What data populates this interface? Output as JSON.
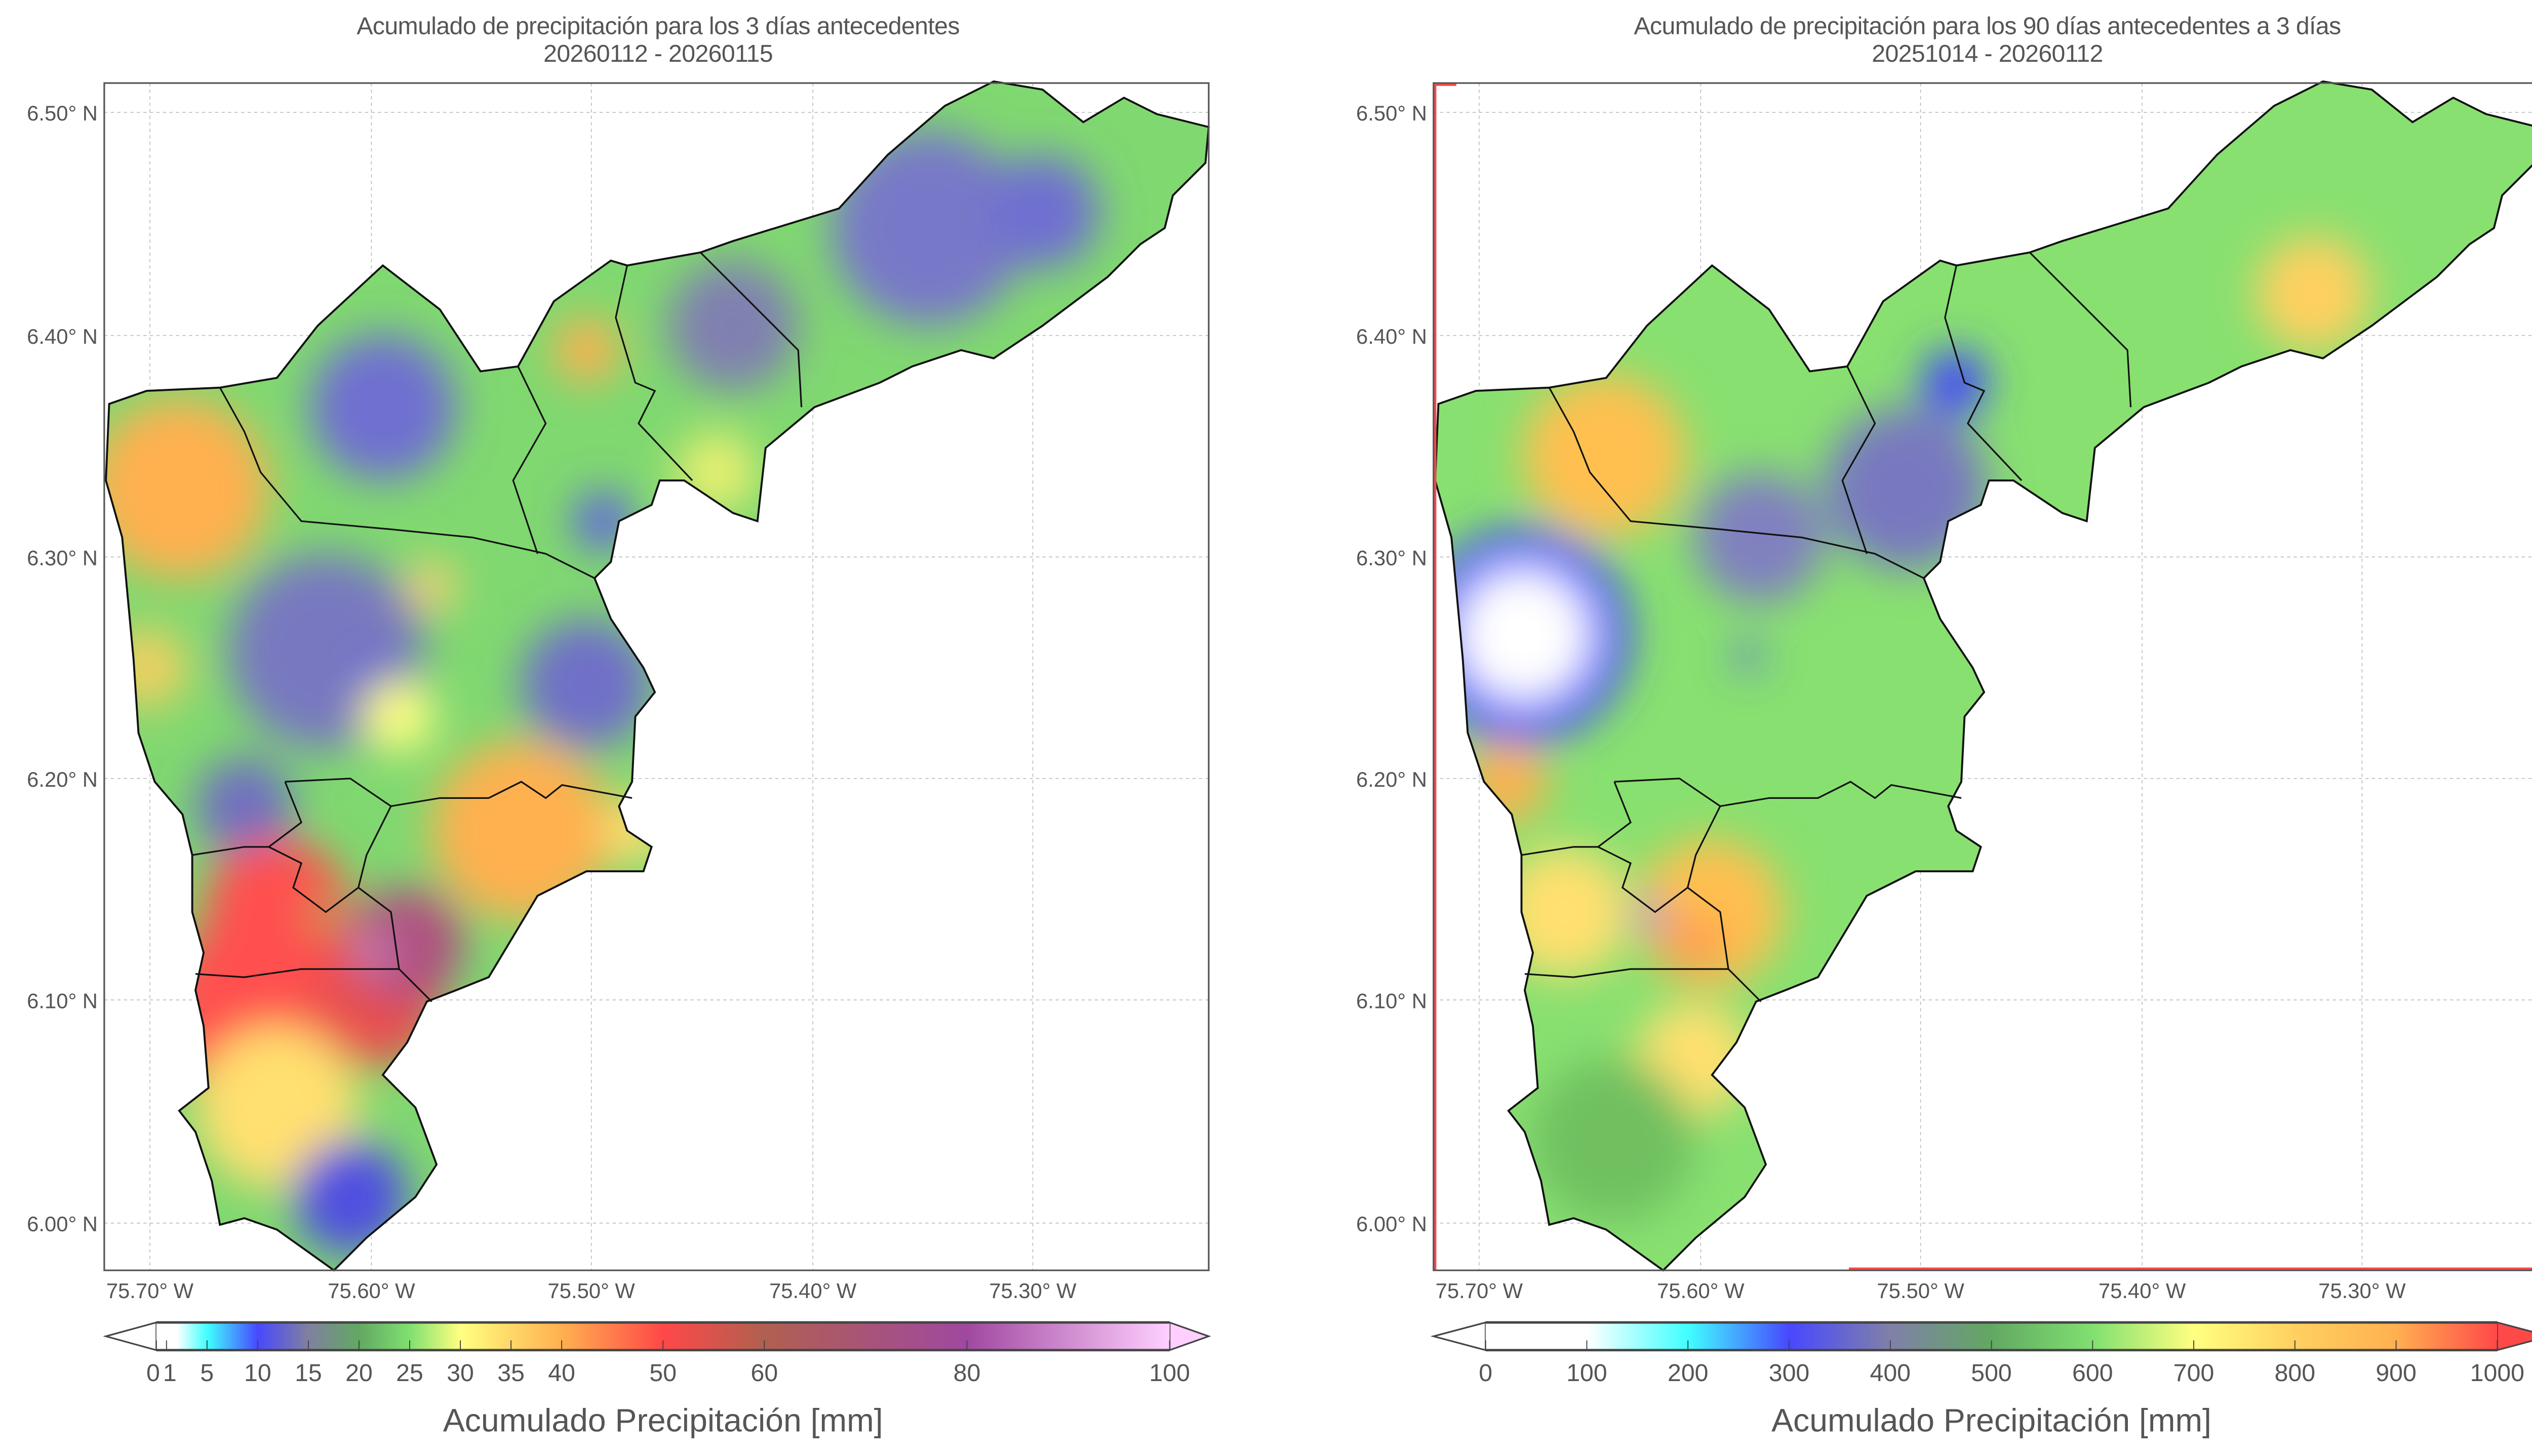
{
  "panels": [
    {
      "title": "Acumulado de precipitación para los 3 días antecedentes",
      "subtitle": "20260112 - 20260115",
      "lat_ticks": [
        "6.50° N",
        "6.40° N",
        "6.30° N",
        "6.20° N",
        "6.10° N",
        "6.00° N"
      ],
      "lon_ticks": [
        "75.70° W",
        "75.60° W",
        "75.50° W",
        "75.40° W",
        "75.30° W"
      ],
      "colorbar": {
        "label": "Acumulado Precipitación [mm]",
        "range": [
          0,
          100
        ],
        "extend": "both",
        "ticks": [
          0,
          1,
          5,
          10,
          15,
          20,
          25,
          30,
          35,
          40,
          50,
          60,
          80,
          100
        ],
        "tick_labels": [
          "0",
          "1",
          "5",
          "10",
          "15",
          "20",
          "25",
          "30",
          "35",
          "40",
          "50",
          "60",
          "80",
          "100"
        ],
        "stops": [
          [
            0,
            "#ffffff"
          ],
          [
            2,
            "#ffffff"
          ],
          [
            5,
            "#40ffff"
          ],
          [
            10,
            "#4848ff"
          ],
          [
            15,
            "#8080a0"
          ],
          [
            20,
            "#62a862"
          ],
          [
            25,
            "#80e070"
          ],
          [
            30,
            "#ffff80"
          ],
          [
            40,
            "#ffb050"
          ],
          [
            50,
            "#ff4848"
          ],
          [
            60,
            "#b06050"
          ],
          [
            80,
            "#a048a0"
          ],
          [
            100,
            "#ffd0ff"
          ]
        ],
        "under_color": "#ffffff",
        "over_color": "#ffd0ff"
      }
    },
    {
      "title": "Acumulado de precipitación para los 90 días antecedentes a 3 días",
      "subtitle": "20251014 - 20260112",
      "lat_ticks": [
        "6.50° N",
        "6.40° N",
        "6.30° N",
        "6.20° N",
        "6.10° N",
        "6.00° N"
      ],
      "lon_ticks": [
        "75.70° W",
        "75.60° W",
        "75.50° W",
        "75.40° W",
        "75.30° W"
      ],
      "colorbar": {
        "label": "Acumulado Precipitación [mm]",
        "range": [
          0,
          1000
        ],
        "extend": "both",
        "ticks": [
          0,
          100,
          200,
          300,
          400,
          500,
          600,
          700,
          800,
          900,
          1000
        ],
        "tick_labels": [
          "0",
          "100",
          "200",
          "300",
          "400",
          "500",
          "600",
          "700",
          "800",
          "900",
          "1000"
        ],
        "stops": [
          [
            0,
            "#ffffff"
          ],
          [
            100,
            "#ffffff"
          ],
          [
            200,
            "#40ffff"
          ],
          [
            300,
            "#4848ff"
          ],
          [
            400,
            "#8080a8"
          ],
          [
            500,
            "#62a862"
          ],
          [
            600,
            "#80e070"
          ],
          [
            700,
            "#ffff80"
          ],
          [
            800,
            "#ffd060"
          ],
          [
            900,
            "#ffb050"
          ],
          [
            1000,
            "#ff4848"
          ]
        ],
        "under_color": "#ffffff",
        "over_color": "#ff4848"
      }
    }
  ]
}
